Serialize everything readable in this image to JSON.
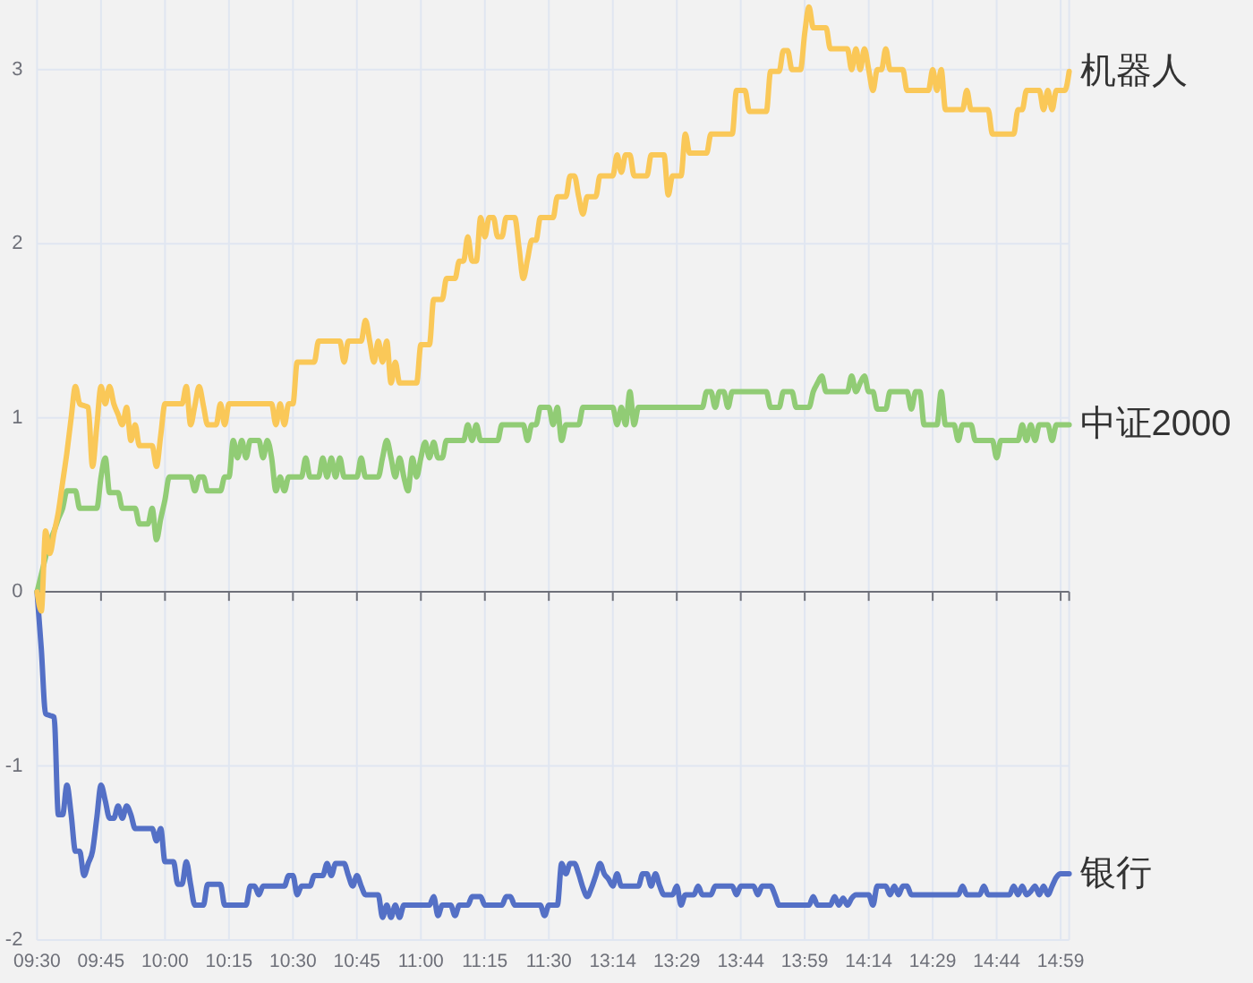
{
  "chart_data": {
    "type": "line",
    "ylim": [
      -2,
      3.4
    ],
    "yticks": [
      -2,
      -1,
      0,
      1,
      2,
      3
    ],
    "grid": true,
    "categories": [
      "09:30",
      null,
      null,
      null,
      null,
      null,
      null,
      null,
      null,
      null,
      null,
      null,
      null,
      null,
      null,
      "09:45",
      null,
      null,
      null,
      null,
      null,
      null,
      null,
      null,
      null,
      null,
      null,
      null,
      null,
      null,
      "10:00",
      null,
      null,
      null,
      null,
      null,
      null,
      null,
      null,
      null,
      null,
      null,
      null,
      null,
      null,
      "10:15",
      null,
      null,
      null,
      null,
      null,
      null,
      null,
      null,
      null,
      null,
      null,
      null,
      null,
      null,
      "10:30",
      null,
      null,
      null,
      null,
      null,
      null,
      null,
      null,
      null,
      null,
      null,
      null,
      null,
      null,
      "10:45",
      null,
      null,
      null,
      null,
      null,
      null,
      null,
      null,
      null,
      null,
      null,
      null,
      null,
      null,
      "11:00",
      null,
      null,
      null,
      null,
      null,
      null,
      null,
      null,
      null,
      null,
      null,
      null,
      null,
      null,
      "11:15",
      null,
      null,
      null,
      null,
      null,
      null,
      null,
      null,
      null,
      null,
      null,
      null,
      null,
      null,
      "11:30",
      null,
      null,
      null,
      null,
      null,
      null,
      null,
      null,
      null,
      null,
      null,
      null,
      null,
      null,
      "13:14",
      null,
      null,
      null,
      null,
      null,
      null,
      null,
      null,
      null,
      null,
      null,
      null,
      null,
      null,
      "13:29",
      null,
      null,
      null,
      null,
      null,
      null,
      null,
      null,
      null,
      null,
      null,
      null,
      null,
      null,
      "13:44",
      null,
      null,
      null,
      null,
      null,
      null,
      null,
      null,
      null,
      null,
      null,
      null,
      null,
      null,
      "13:59",
      null,
      null,
      null,
      null,
      null,
      null,
      null,
      null,
      null,
      null,
      null,
      null,
      null,
      null,
      "14:14",
      null,
      null,
      null,
      null,
      null,
      null,
      null,
      null,
      null,
      null,
      null,
      null,
      null,
      null,
      "14:29",
      null,
      null,
      null,
      null,
      null,
      null,
      null,
      null,
      null,
      null,
      null,
      null,
      null,
      null,
      "14:44",
      null,
      null,
      null,
      null,
      null,
      null,
      null,
      null,
      null,
      null,
      null,
      null,
      null,
      null,
      "14:59",
      null,
      null
    ],
    "series": [
      {
        "name": "机器人",
        "color": "#fac858",
        "values": [
          0,
          -0.11,
          0.35,
          0.22,
          0.34,
          0.46,
          0.63,
          0.8,
          1.0,
          1.18,
          1.08,
          1.07,
          1.06,
          0.72,
          0.95,
          1.18,
          1.08,
          1.18,
          1.08,
          1.02,
          0.96,
          1.06,
          0.87,
          0.96,
          0.84,
          0.84,
          0.84,
          0.84,
          0.72,
          0.9,
          1.08,
          1.08,
          1.08,
          1.08,
          1.08,
          1.18,
          0.96,
          1.07,
          1.18,
          1.07,
          0.96,
          0.96,
          0.96,
          1.08,
          0.96,
          1.08,
          1.08,
          1.08,
          1.08,
          1.08,
          1.08,
          1.08,
          1.08,
          1.08,
          1.08,
          1.08,
          0.96,
          1.08,
          0.96,
          1.08,
          1.08,
          1.32,
          1.32,
          1.32,
          1.32,
          1.32,
          1.44,
          1.44,
          1.44,
          1.44,
          1.44,
          1.44,
          1.32,
          1.44,
          1.44,
          1.44,
          1.44,
          1.56,
          1.44,
          1.32,
          1.44,
          1.32,
          1.44,
          1.2,
          1.32,
          1.2,
          1.2,
          1.2,
          1.2,
          1.2,
          1.42,
          1.42,
          1.42,
          1.68,
          1.68,
          1.68,
          1.8,
          1.8,
          1.8,
          1.9,
          1.9,
          2.04,
          1.9,
          1.9,
          2.15,
          2.04,
          2.15,
          2.15,
          2.04,
          2.04,
          2.15,
          2.15,
          2.15,
          1.98,
          1.8,
          1.91,
          2.02,
          2.02,
          2.15,
          2.15,
          2.15,
          2.15,
          2.27,
          2.27,
          2.27,
          2.39,
          2.39,
          2.27,
          2.17,
          2.27,
          2.27,
          2.27,
          2.39,
          2.39,
          2.39,
          2.39,
          2.51,
          2.41,
          2.51,
          2.51,
          2.39,
          2.39,
          2.39,
          2.39,
          2.51,
          2.51,
          2.51,
          2.51,
          2.28,
          2.39,
          2.39,
          2.39,
          2.63,
          2.52,
          2.52,
          2.52,
          2.52,
          2.52,
          2.63,
          2.63,
          2.63,
          2.63,
          2.63,
          2.63,
          2.88,
          2.88,
          2.88,
          2.76,
          2.76,
          2.76,
          2.76,
          2.76,
          2.99,
          2.99,
          2.99,
          3.11,
          3.11,
          3.0,
          3.0,
          3.0,
          3.21,
          3.36,
          3.24,
          3.24,
          3.24,
          3.24,
          3.12,
          3.12,
          3.12,
          3.12,
          3.12,
          3.0,
          3.12,
          3.0,
          3.12,
          3.0,
          2.88,
          3.0,
          3.0,
          3.12,
          3.0,
          3.0,
          3.0,
          3.0,
          2.88,
          2.88,
          2.88,
          2.88,
          2.88,
          2.88,
          3.0,
          2.88,
          3.0,
          2.77,
          2.77,
          2.77,
          2.77,
          2.77,
          2.88,
          2.77,
          2.77,
          2.77,
          2.77,
          2.77,
          2.63,
          2.63,
          2.63,
          2.63,
          2.63,
          2.63,
          2.77,
          2.77,
          2.88,
          2.88,
          2.88,
          2.88,
          2.77,
          2.88,
          2.77,
          2.88,
          2.88,
          2.88,
          2.99
        ]
      },
      {
        "name": "中证2000",
        "color": "#91cc75",
        "values": [
          0,
          0.1,
          0.2,
          0.29,
          0.35,
          0.42,
          0.48,
          0.58,
          0.58,
          0.58,
          0.48,
          0.48,
          0.48,
          0.48,
          0.48,
          0.66,
          0.77,
          0.57,
          0.57,
          0.57,
          0.48,
          0.48,
          0.48,
          0.48,
          0.39,
          0.39,
          0.39,
          0.48,
          0.3,
          0.42,
          0.53,
          0.66,
          0.66,
          0.66,
          0.66,
          0.66,
          0.66,
          0.58,
          0.66,
          0.66,
          0.58,
          0.58,
          0.58,
          0.58,
          0.66,
          0.66,
          0.87,
          0.77,
          0.87,
          0.77,
          0.87,
          0.87,
          0.87,
          0.77,
          0.87,
          0.77,
          0.58,
          0.66,
          0.58,
          0.66,
          0.66,
          0.66,
          0.66,
          0.77,
          0.66,
          0.66,
          0.66,
          0.77,
          0.66,
          0.77,
          0.66,
          0.77,
          0.66,
          0.66,
          0.66,
          0.66,
          0.77,
          0.66,
          0.66,
          0.66,
          0.66,
          0.77,
          0.87,
          0.77,
          0.66,
          0.77,
          0.66,
          0.58,
          0.77,
          0.66,
          0.77,
          0.86,
          0.77,
          0.86,
          0.77,
          0.77,
          0.87,
          0.87,
          0.87,
          0.87,
          0.87,
          0.96,
          0.87,
          0.96,
          0.87,
          0.87,
          0.87,
          0.87,
          0.87,
          0.96,
          0.96,
          0.96,
          0.96,
          0.96,
          0.96,
          0.87,
          0.96,
          0.96,
          1.06,
          1.06,
          1.06,
          0.96,
          1.06,
          0.87,
          0.96,
          0.96,
          0.96,
          0.96,
          1.06,
          1.06,
          1.06,
          1.06,
          1.06,
          1.06,
          1.06,
          1.06,
          0.96,
          1.06,
          0.96,
          1.15,
          0.96,
          1.06,
          1.06,
          1.06,
          1.06,
          1.06,
          1.06,
          1.06,
          1.06,
          1.06,
          1.06,
          1.06,
          1.06,
          1.06,
          1.06,
          1.06,
          1.06,
          1.15,
          1.15,
          1.06,
          1.15,
          1.15,
          1.06,
          1.15,
          1.15,
          1.15,
          1.15,
          1.15,
          1.15,
          1.15,
          1.15,
          1.15,
          1.06,
          1.06,
          1.06,
          1.15,
          1.15,
          1.15,
          1.06,
          1.06,
          1.06,
          1.06,
          1.15,
          1.2,
          1.24,
          1.15,
          1.15,
          1.15,
          1.15,
          1.15,
          1.15,
          1.24,
          1.15,
          1.2,
          1.24,
          1.15,
          1.15,
          1.05,
          1.05,
          1.05,
          1.15,
          1.15,
          1.15,
          1.15,
          1.15,
          1.05,
          1.15,
          1.15,
          0.96,
          0.96,
          0.96,
          0.96,
          1.15,
          0.96,
          0.96,
          0.96,
          0.87,
          0.96,
          0.96,
          0.96,
          0.87,
          0.87,
          0.87,
          0.87,
          0.87,
          0.77,
          0.87,
          0.87,
          0.87,
          0.87,
          0.87,
          0.96,
          0.87,
          0.96,
          0.87,
          0.96,
          0.96,
          0.96,
          0.87,
          0.96,
          0.96,
          0.96,
          0.96
        ]
      },
      {
        "name": "银行",
        "color": "#5470c6",
        "values": [
          0,
          -0.33,
          -0.7,
          -0.71,
          -0.72,
          -1.28,
          -1.28,
          -1.11,
          -1.28,
          -1.49,
          -1.49,
          -1.63,
          -1.56,
          -1.49,
          -1.3,
          -1.11,
          -1.2,
          -1.3,
          -1.3,
          -1.23,
          -1.3,
          -1.23,
          -1.28,
          -1.36,
          -1.36,
          -1.36,
          -1.36,
          -1.36,
          -1.43,
          -1.36,
          -1.55,
          -1.55,
          -1.55,
          -1.68,
          -1.68,
          -1.55,
          -1.68,
          -1.8,
          -1.8,
          -1.8,
          -1.68,
          -1.68,
          -1.68,
          -1.68,
          -1.8,
          -1.8,
          -1.8,
          -1.8,
          -1.8,
          -1.8,
          -1.69,
          -1.69,
          -1.74,
          -1.69,
          -1.69,
          -1.69,
          -1.69,
          -1.69,
          -1.69,
          -1.63,
          -1.63,
          -1.74,
          -1.69,
          -1.69,
          -1.69,
          -1.63,
          -1.63,
          -1.63,
          -1.56,
          -1.63,
          -1.56,
          -1.56,
          -1.56,
          -1.63,
          -1.69,
          -1.63,
          -1.69,
          -1.74,
          -1.74,
          -1.74,
          -1.74,
          -1.87,
          -1.8,
          -1.87,
          -1.8,
          -1.87,
          -1.8,
          -1.8,
          -1.8,
          -1.8,
          -1.8,
          -1.8,
          -1.8,
          -1.75,
          -1.86,
          -1.8,
          -1.8,
          -1.8,
          -1.86,
          -1.8,
          -1.8,
          -1.8,
          -1.75,
          -1.75,
          -1.75,
          -1.8,
          -1.8,
          -1.8,
          -1.8,
          -1.8,
          -1.75,
          -1.75,
          -1.8,
          -1.8,
          -1.8,
          -1.8,
          -1.8,
          -1.8,
          -1.8,
          -1.86,
          -1.8,
          -1.8,
          -1.8,
          -1.56,
          -1.62,
          -1.56,
          -1.56,
          -1.62,
          -1.7,
          -1.75,
          -1.7,
          -1.63,
          -1.56,
          -1.62,
          -1.65,
          -1.69,
          -1.62,
          -1.69,
          -1.69,
          -1.69,
          -1.69,
          -1.69,
          -1.62,
          -1.62,
          -1.69,
          -1.62,
          -1.69,
          -1.74,
          -1.74,
          -1.74,
          -1.69,
          -1.8,
          -1.74,
          -1.74,
          -1.74,
          -1.69,
          -1.74,
          -1.74,
          -1.74,
          -1.69,
          -1.69,
          -1.69,
          -1.69,
          -1.69,
          -1.74,
          -1.69,
          -1.69,
          -1.69,
          -1.69,
          -1.74,
          -1.69,
          -1.69,
          -1.69,
          -1.74,
          -1.8,
          -1.8,
          -1.8,
          -1.8,
          -1.8,
          -1.8,
          -1.8,
          -1.8,
          -1.75,
          -1.8,
          -1.8,
          -1.8,
          -1.8,
          -1.75,
          -1.8,
          -1.76,
          -1.8,
          -1.76,
          -1.74,
          -1.74,
          -1.74,
          -1.74,
          -1.8,
          -1.69,
          -1.69,
          -1.69,
          -1.74,
          -1.69,
          -1.74,
          -1.69,
          -1.69,
          -1.74,
          -1.74,
          -1.74,
          -1.74,
          -1.74,
          -1.74,
          -1.74,
          -1.74,
          -1.74,
          -1.74,
          -1.74,
          -1.74,
          -1.69,
          -1.74,
          -1.74,
          -1.74,
          -1.74,
          -1.69,
          -1.74,
          -1.74,
          -1.74,
          -1.74,
          -1.74,
          -1.74,
          -1.69,
          -1.74,
          -1.69,
          -1.74,
          -1.72,
          -1.69,
          -1.74,
          -1.69,
          -1.74,
          -1.69,
          -1.64,
          -1.62,
          -1.62,
          -1.62
        ]
      }
    ]
  }
}
